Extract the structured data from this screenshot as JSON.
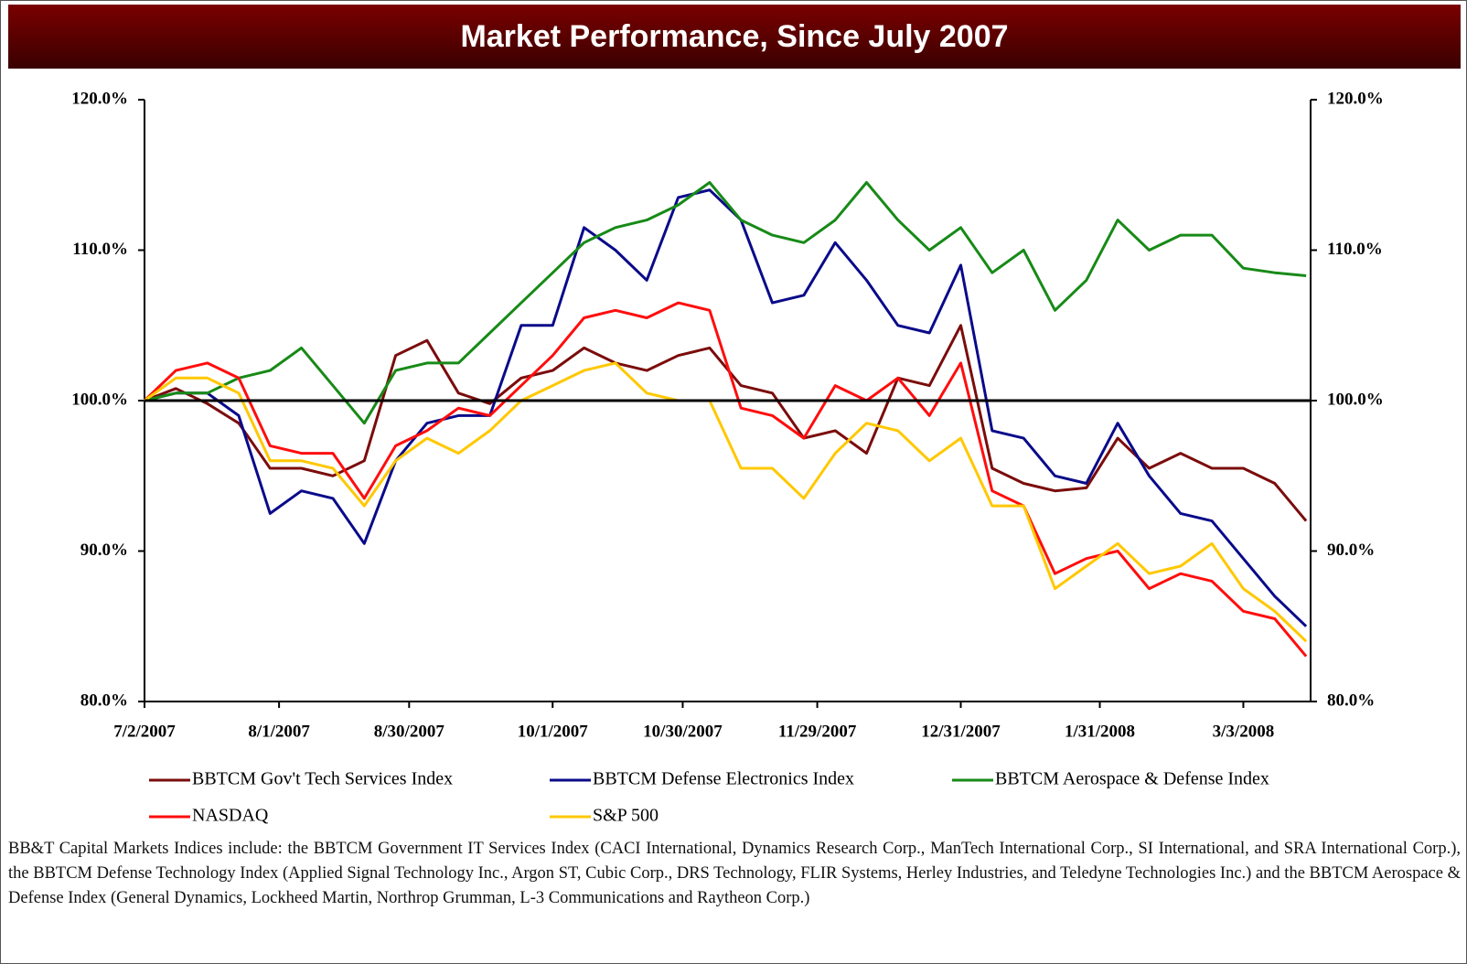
{
  "chart_data": {
    "type": "line",
    "title": "Market Performance, Since July 2007",
    "x": [
      "7/2/2007",
      "7/9/2007",
      "7/16/2007",
      "7/23/2007",
      "7/30/2007",
      "8/6/2007",
      "8/13/2007",
      "8/20/2007",
      "8/27/2007",
      "9/3/2007",
      "9/10/2007",
      "9/17/2007",
      "9/24/2007",
      "10/1/2007",
      "10/8/2007",
      "10/15/2007",
      "10/22/2007",
      "10/29/2007",
      "11/5/2007",
      "11/12/2007",
      "11/19/2007",
      "11/26/2007",
      "12/3/2007",
      "12/10/2007",
      "12/17/2007",
      "12/24/2007",
      "12/31/2007",
      "1/7/2008",
      "1/14/2008",
      "1/21/2008",
      "1/28/2008",
      "2/4/2008",
      "2/11/2008",
      "2/18/2008",
      "2/25/2008",
      "3/3/2008",
      "3/10/2008",
      "3/17/2008"
    ],
    "xlim": [
      "7/2/2007",
      "3/18/2008"
    ],
    "xticks": [
      "7/2/2007",
      "8/1/2007",
      "8/30/2007",
      "10/1/2007",
      "10/30/2007",
      "11/29/2007",
      "12/31/2007",
      "1/31/2008",
      "3/3/2008"
    ],
    "ylim": [
      80,
      120
    ],
    "yticks": [
      {
        "value": 80,
        "label": "80.0%"
      },
      {
        "value": 90,
        "label": "90.0%"
      },
      {
        "value": 100,
        "label": "100.0%"
      },
      {
        "value": 110,
        "label": "110.0%"
      },
      {
        "value": 120,
        "label": "120.0%"
      }
    ],
    "reference_line": 100,
    "series": [
      {
        "name": "BBTCM Gov't Tech Services Index",
        "color": "#7b0c0c",
        "values": [
          100,
          100.8,
          99.8,
          98.5,
          95.5,
          95.5,
          95,
          96,
          103,
          104,
          100.5,
          99.8,
          101.5,
          102,
          103.5,
          102.5,
          102,
          103,
          103.5,
          101,
          100.5,
          97.5,
          98,
          96.5,
          101.5,
          101,
          105,
          95.5,
          94.5,
          94,
          94.2,
          97.5,
          95.5,
          96.5,
          95.5,
          95.5,
          94.5,
          92
        ]
      },
      {
        "name": "BBTCM Defense Electronics Index",
        "color": "#0a0a8a",
        "values": [
          100,
          100.5,
          100.5,
          99,
          92.5,
          94,
          93.5,
          90.5,
          96,
          98.5,
          99,
          99,
          105,
          105,
          111.5,
          110,
          108,
          113.5,
          114,
          112,
          106.5,
          107,
          110.5,
          108,
          105,
          104.5,
          109,
          98,
          97.5,
          95,
          94.5,
          98.5,
          95,
          92.5,
          92,
          89.5,
          87,
          85
        ]
      },
      {
        "name": "BBTCM Aerospace & Defense Index",
        "color": "#178a17",
        "values": [
          100,
          100.5,
          100.5,
          101.5,
          102,
          103.5,
          101,
          98.5,
          102,
          102.5,
          102.5,
          104.5,
          106.5,
          108.5,
          110.5,
          111.5,
          112,
          113,
          114.5,
          112,
          111,
          110.5,
          112,
          114.5,
          112,
          110,
          111.5,
          108.5,
          110,
          106,
          108,
          112,
          110,
          111,
          111,
          108.8,
          108.5,
          108.3
        ]
      },
      {
        "name": "NASDAQ",
        "color": "#ff0d0d",
        "values": [
          100,
          102,
          102.5,
          101.5,
          97,
          96.5,
          96.5,
          93.5,
          97,
          98,
          99.5,
          99,
          101,
          103,
          105.5,
          106,
          105.5,
          106.5,
          106,
          99.5,
          99,
          97.5,
          101,
          100,
          101.5,
          99,
          102.5,
          94,
          93,
          88.5,
          89.5,
          90,
          87.5,
          88.5,
          88,
          86,
          85.5,
          83
        ]
      },
      {
        "name": "S&P 500",
        "color": "#ffc800",
        "values": [
          100,
          101.5,
          101.5,
          100.5,
          96,
          96,
          95.5,
          93,
          96,
          97.5,
          96.5,
          98,
          100,
          101,
          102,
          102.5,
          100.5,
          100,
          100,
          95.5,
          95.5,
          93.5,
          96.5,
          98.5,
          98,
          96,
          97.5,
          93,
          93,
          87.5,
          89,
          90.5,
          88.5,
          89,
          90.5,
          87.5,
          86,
          84
        ]
      }
    ],
    "footnote": "BB&T Capital Markets Indices include: the BBTCM Government IT Services Index (CACI International, Dynamics Research Corp., ManTech International Corp., SI International, and SRA International Corp.), the BBTCM Defense Technology Index (Applied Signal Technology Inc., Argon ST, Cubic Corp., DRS Technology, FLIR Systems, Herley Industries, and Teledyne Technologies Inc.) and the BBTCM Aerospace & Defense Index (General Dynamics, Lockheed Martin, Northrop Grumman, L-3 Communications and Raytheon Corp.)"
  }
}
